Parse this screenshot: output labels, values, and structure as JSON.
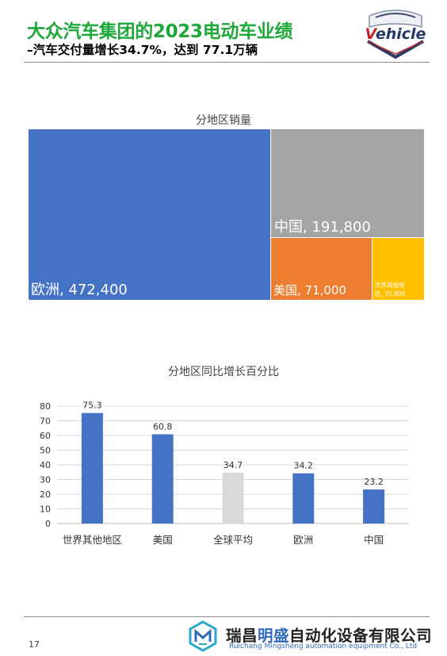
{
  "header": {
    "title": "大众汽车集团的2023电动车业绩",
    "subtitle": "–汽车交付量增长34.7%，达到 77.1万辆",
    "logo_text": "Vehicle"
  },
  "footer": {
    "page_number": "17",
    "company_cn_part1": "瑞昌",
    "company_cn_highlight": "明盛",
    "company_cn_part2": "自动化设备有限公司",
    "company_en": "Ruichang Mingsheng automation equipment Co., Ltd"
  },
  "colors": {
    "accent_green": "#1fa83a",
    "blue": "#4472c4",
    "gray": "#a5a5a5",
    "orange": "#ed7d31",
    "gold": "#ffc000",
    "light_gray": "#d9d9d9",
    "brand_blue": "#2f6bbd"
  },
  "chart_data": [
    {
      "type": "treemap",
      "title": "分地区销量",
      "items": [
        {
          "label": "欧洲, 472,400",
          "name": "欧洲",
          "value": 472400,
          "color": "#4472c4"
        },
        {
          "label": "中国, 191,800",
          "name": "中国",
          "value": 191800,
          "color": "#a5a5a5"
        },
        {
          "label": "美国, 71,000",
          "name": "美国",
          "value": 71000,
          "color": "#ed7d31"
        },
        {
          "label_line1": "世界其他地",
          "label_line2": "区, 35,800",
          "name": "世界其他地区",
          "value": 35800,
          "color": "#ffc000"
        }
      ]
    },
    {
      "type": "bar",
      "title": "分地区同比增长百分比",
      "categories": [
        "世界其他地区",
        "美国",
        "全球平均",
        "欧洲",
        "中国"
      ],
      "values": [
        75.3,
        60.8,
        34.7,
        34.2,
        23.2
      ],
      "value_labels": [
        "75.3",
        "60.8",
        "34.7",
        "34.2",
        "23.2"
      ],
      "bar_colors": [
        "#4472c4",
        "#4472c4",
        "#d9d9d9",
        "#4472c4",
        "#4472c4"
      ],
      "ylim": [
        0,
        80
      ],
      "yticks": [
        "0",
        "10",
        "20",
        "30",
        "40",
        "50",
        "60",
        "70",
        "80"
      ],
      "grid": true,
      "xlabel": "",
      "ylabel": ""
    }
  ]
}
